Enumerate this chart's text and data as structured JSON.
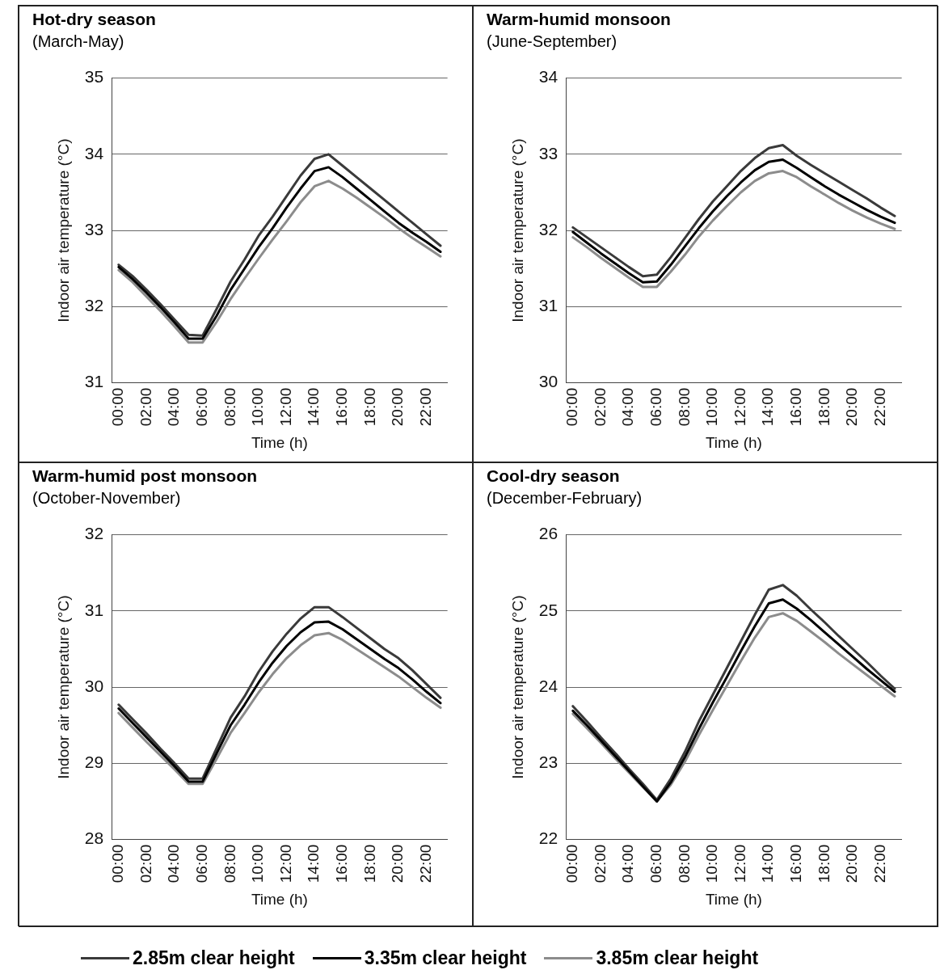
{
  "chart_data": [
    {
      "type": "line",
      "title": "Hot-dry season",
      "subtitle": "(March-May)",
      "xlabel": "Time (h)",
      "ylabel": "Indoor air temperature (°C)",
      "categories": [
        "00:00",
        null,
        "02:00",
        null,
        "04:00",
        null,
        "06:00",
        null,
        "08:00",
        null,
        "10:00",
        null,
        "12:00",
        null,
        "14:00",
        null,
        "16:00",
        null,
        "18:00",
        null,
        "20:00",
        null,
        "22:00",
        null
      ],
      "ylim": [
        31,
        35
      ],
      "yticks": [
        31,
        32,
        33,
        34,
        35
      ],
      "grid": "y",
      "legend": "bottom",
      "series": [
        {
          "name": "2.85m clear height",
          "color": "#3a3a3a",
          "values": [
            32.55,
            32.4,
            32.22,
            32.03,
            31.83,
            31.63,
            31.62,
            31.97,
            32.33,
            32.62,
            32.93,
            33.18,
            33.45,
            33.72,
            33.94,
            34.0,
            33.85,
            33.7,
            33.55,
            33.4,
            33.25,
            33.1,
            32.95,
            32.8
          ]
        },
        {
          "name": "3.35m clear height",
          "color": "#000000",
          "values": [
            32.52,
            32.36,
            32.18,
            31.99,
            31.79,
            31.58,
            31.58,
            31.88,
            32.22,
            32.5,
            32.78,
            33.03,
            33.3,
            33.55,
            33.78,
            33.83,
            33.7,
            33.55,
            33.4,
            33.25,
            33.1,
            32.97,
            32.85,
            32.72
          ]
        },
        {
          "name": "3.85m clear height",
          "color": "#8c8c8c",
          "values": [
            32.48,
            32.32,
            32.13,
            31.94,
            31.74,
            31.53,
            31.53,
            31.8,
            32.1,
            32.37,
            32.63,
            32.88,
            33.12,
            33.37,
            33.58,
            33.65,
            33.55,
            33.43,
            33.3,
            33.17,
            33.03,
            32.9,
            32.78,
            32.66
          ]
        }
      ]
    },
    {
      "type": "line",
      "title": "Warm-humid monsoon",
      "subtitle": "(June-September)",
      "xlabel": "Time (h)",
      "ylabel": "Indoor air temperature (°C)",
      "categories": [
        "00:00",
        null,
        "02:00",
        null,
        "04:00",
        null,
        "06:00",
        null,
        "08:00",
        null,
        "10:00",
        null,
        "12:00",
        null,
        "14:00",
        null,
        "16:00",
        null,
        "18:00",
        null,
        "20:00",
        null,
        "22:00",
        null
      ],
      "ylim": [
        30,
        34
      ],
      "yticks": [
        30,
        31,
        32,
        33,
        34
      ],
      "grid": "y",
      "series": [
        {
          "color": "#3a3a3a",
          "values": [
            32.04,
            31.91,
            31.78,
            31.65,
            31.52,
            31.4,
            31.42,
            31.65,
            31.9,
            32.15,
            32.38,
            32.58,
            32.78,
            32.95,
            33.08,
            33.12,
            32.98,
            32.86,
            32.75,
            32.64,
            32.53,
            32.42,
            32.3,
            32.19
          ]
        },
        {
          "color": "#000000",
          "values": [
            31.98,
            31.84,
            31.7,
            31.57,
            31.44,
            31.32,
            31.33,
            31.55,
            31.79,
            32.03,
            32.25,
            32.45,
            32.63,
            32.79,
            32.9,
            32.93,
            32.82,
            32.7,
            32.58,
            32.47,
            32.37,
            32.27,
            32.18,
            32.1
          ]
        },
        {
          "color": "#8c8c8c",
          "values": [
            31.91,
            31.78,
            31.64,
            31.51,
            31.38,
            31.26,
            31.26,
            31.46,
            31.68,
            31.92,
            32.13,
            32.32,
            32.5,
            32.65,
            32.75,
            32.78,
            32.7,
            32.58,
            32.47,
            32.36,
            32.26,
            32.17,
            32.09,
            32.02
          ]
        }
      ]
    },
    {
      "type": "line",
      "title": "Warm-humid post monsoon",
      "subtitle": "(October-November)",
      "xlabel": "Time (h)",
      "ylabel": "Indoor air temperature (°C)",
      "categories": [
        "00:00",
        null,
        "02:00",
        null,
        "04:00",
        null,
        "06:00",
        null,
        "08:00",
        null,
        "10:00",
        null,
        "12:00",
        null,
        "14:00",
        null,
        "16:00",
        null,
        "18:00",
        null,
        "20:00",
        null,
        "22:00",
        null
      ],
      "ylim": [
        28,
        32
      ],
      "yticks": [
        28,
        29,
        30,
        31,
        32
      ],
      "grid": "y",
      "series": [
        {
          "color": "#3a3a3a",
          "values": [
            29.77,
            29.58,
            29.39,
            29.19,
            29.0,
            28.8,
            28.8,
            29.2,
            29.6,
            29.88,
            30.2,
            30.47,
            30.7,
            30.9,
            31.05,
            31.05,
            30.92,
            30.78,
            30.64,
            30.5,
            30.38,
            30.22,
            30.04,
            29.86
          ]
        },
        {
          "color": "#000000",
          "values": [
            29.72,
            29.53,
            29.34,
            29.15,
            28.96,
            28.76,
            28.76,
            29.13,
            29.5,
            29.77,
            30.06,
            30.32,
            30.54,
            30.72,
            30.85,
            30.86,
            30.76,
            30.63,
            30.5,
            30.37,
            30.25,
            30.1,
            29.94,
            29.79
          ]
        },
        {
          "color": "#8c8c8c",
          "values": [
            29.66,
            29.47,
            29.28,
            29.1,
            28.92,
            28.73,
            28.73,
            29.06,
            29.4,
            29.66,
            29.93,
            30.17,
            30.38,
            30.55,
            30.68,
            30.71,
            30.62,
            30.5,
            30.38,
            30.26,
            30.14,
            30.0,
            29.86,
            29.73
          ]
        }
      ]
    },
    {
      "type": "line",
      "title": "Cool-dry season",
      "subtitle": "(December-February)",
      "xlabel": "Time (h)",
      "ylabel": "Indoor air temperature (°C)",
      "categories": [
        "00:00",
        null,
        "02:00",
        null,
        "04:00",
        null,
        "06:00",
        null,
        "08:00",
        null,
        "10:00",
        null,
        "12:00",
        null,
        "14:00",
        null,
        "16:00",
        null,
        "18:00",
        null,
        "20:00",
        null,
        "22:00",
        null
      ],
      "ylim": [
        22,
        26
      ],
      "yticks": [
        22,
        23,
        24,
        25,
        26
      ],
      "grid": "y",
      "series": [
        {
          "color": "#3a3a3a",
          "values": [
            23.75,
            23.55,
            23.34,
            23.14,
            22.93,
            22.73,
            22.52,
            22.8,
            23.15,
            23.55,
            23.9,
            24.25,
            24.6,
            24.95,
            25.28,
            25.34,
            25.2,
            25.02,
            24.85,
            24.67,
            24.5,
            24.33,
            24.15,
            23.98
          ]
        },
        {
          "color": "#000000",
          "values": [
            23.69,
            23.5,
            23.3,
            23.1,
            22.9,
            22.7,
            22.5,
            22.75,
            23.08,
            23.45,
            23.8,
            24.13,
            24.47,
            24.8,
            25.1,
            25.15,
            25.03,
            24.88,
            24.72,
            24.56,
            24.4,
            24.24,
            24.09,
            23.94
          ]
        },
        {
          "color": "#8c8c8c",
          "values": [
            23.65,
            23.46,
            23.27,
            23.07,
            22.88,
            22.69,
            22.5,
            22.72,
            23.02,
            23.37,
            23.7,
            24.02,
            24.34,
            24.65,
            24.92,
            24.97,
            24.87,
            24.73,
            24.59,
            24.44,
            24.3,
            24.16,
            24.02,
            23.88
          ]
        }
      ]
    }
  ]
}
